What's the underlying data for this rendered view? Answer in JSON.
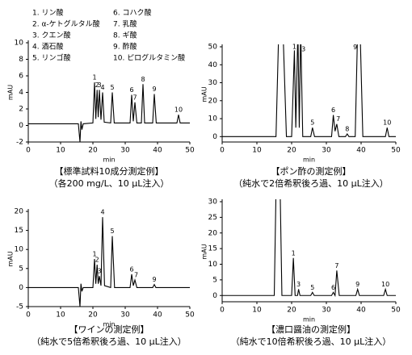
{
  "chart_data": [
    {
      "type": "line",
      "xlabel": "min",
      "ylabel": "mAU",
      "caption": [
        "【標準試料10成分測定例】",
        "（各200 mg/L、10 μL注入）"
      ],
      "xlim": [
        0,
        50
      ],
      "xticks": [
        0,
        10,
        20,
        30,
        40,
        50
      ],
      "ylim": [
        -2,
        10
      ],
      "yticks": [
        -2,
        0,
        2,
        4,
        6,
        8,
        10
      ],
      "legend": [
        "1. リン酸",
        "2. α-ケトグルタル酸",
        "3. クエン酸",
        "4. 酒石酸",
        "5. リンゴ酸",
        "6. コハク酸",
        "7. 乳酸",
        "8. ギ酸",
        "9. 酢酸",
        "10. ピログルタミン酸"
      ],
      "x": [
        0,
        15.5,
        16,
        16.3,
        16.6,
        17,
        20,
        20.5,
        20.9,
        21.3,
        21.65,
        22,
        22.5,
        23,
        23.5,
        25.5,
        26,
        26.6,
        31.5,
        32,
        32.5,
        33,
        33.6,
        35,
        35.5,
        36,
        38.5,
        39,
        39.6,
        46,
        46.5,
        47,
        50
      ],
      "values": [
        0.2,
        0.2,
        -2,
        0.5,
        -0.5,
        0.2,
        0.3,
        5.2,
        0.8,
        4.3,
        1,
        4.3,
        0.7,
        4,
        0.4,
        0.3,
        4,
        0.3,
        0.3,
        3.7,
        0.5,
        2.8,
        0.3,
        0.3,
        5,
        0.3,
        0.3,
        3.8,
        0.3,
        0.3,
        1.3,
        0.3,
        0.3
      ],
      "peak_labels": [
        {
          "label": "1",
          "x": 20.5,
          "y": 5.2
        },
        {
          "label": "2",
          "x": 21.3,
          "y": 4.3
        },
        {
          "label": "3",
          "x": 22,
          "y": 4.3
        },
        {
          "label": "4",
          "x": 23,
          "y": 4
        },
        {
          "label": "5",
          "x": 26,
          "y": 4
        },
        {
          "label": "6",
          "x": 32,
          "y": 3.7
        },
        {
          "label": "7",
          "x": 33,
          "y": 2.8
        },
        {
          "label": "8",
          "x": 35.5,
          "y": 5
        },
        {
          "label": "9",
          "x": 39,
          "y": 3.8
        },
        {
          "label": "10",
          "x": 46.5,
          "y": 1.3
        }
      ]
    },
    {
      "type": "line",
      "xlabel": "min",
      "ylabel": "mAU",
      "caption": [
        "【ポン酢の測定例】",
        "（純水で2倍希釈後ろ過、10 μL注入）"
      ],
      "xlim": [
        0,
        50
      ],
      "xticks": [
        0,
        10,
        20,
        30,
        40,
        50
      ],
      "ylim": [
        -3,
        50
      ],
      "yticks": [
        0,
        10,
        20,
        30,
        40,
        50
      ],
      "x": [
        0,
        15.5,
        16.3,
        17.5,
        18.5,
        20,
        20.8,
        21.2,
        21.8,
        22.2,
        22.6,
        23.2,
        25.5,
        26,
        26.6,
        31.5,
        32,
        32.5,
        33,
        33.6,
        35.5,
        36,
        36.5,
        38.3,
        39,
        39.7,
        40.5,
        47,
        47.5,
        48,
        50
      ],
      "values": [
        0,
        0,
        60,
        60,
        0,
        0,
        48,
        5,
        60,
        5,
        60,
        0,
        0,
        5,
        0,
        0,
        12,
        3,
        7,
        0,
        0,
        1.5,
        0,
        0,
        60,
        60,
        0,
        0,
        5,
        0,
        0
      ],
      "peak_labels": [
        {
          "label": "1",
          "x": 20.8,
          "y": 48
        },
        {
          "label": "3",
          "x": 23.4,
          "y": 46
        },
        {
          "label": "5",
          "x": 26,
          "y": 5
        },
        {
          "label": "6",
          "x": 32,
          "y": 12
        },
        {
          "label": "7",
          "x": 33.4,
          "y": 7
        },
        {
          "label": "8",
          "x": 36,
          "y": 1.5
        },
        {
          "label": "9",
          "x": 38.3,
          "y": 47
        },
        {
          "label": "10",
          "x": 47.5,
          "y": 5
        }
      ]
    },
    {
      "type": "line",
      "xlabel": "min",
      "ylabel": "mAU",
      "caption": [
        "【ワインの測定例】",
        "（純水で5倍希釈後ろ過、10 μL注入）"
      ],
      "xlim": [
        0,
        50
      ],
      "xticks": [
        0,
        10,
        20,
        30,
        40,
        50
      ],
      "ylim": [
        -5,
        20
      ],
      "yticks": [
        -5,
        0,
        5,
        10,
        15,
        20
      ],
      "x": [
        0,
        15.5,
        16,
        16.3,
        16.6,
        17,
        20,
        20.5,
        20.9,
        21.3,
        21.65,
        22,
        22.5,
        23,
        23.6,
        25.5,
        26,
        26.7,
        31.5,
        32,
        32.5,
        33,
        33.6,
        38.5,
        39,
        39.5,
        50
      ],
      "values": [
        0,
        0,
        -5,
        1,
        -1,
        0,
        0,
        7.5,
        1,
        6,
        1,
        3,
        0.5,
        18.5,
        0.5,
        0,
        13.5,
        0,
        0,
        3.5,
        0.5,
        2,
        0,
        0,
        0.8,
        0,
        0
      ],
      "peak_labels": [
        {
          "label": "1",
          "x": 20.5,
          "y": 7.5
        },
        {
          "label": "2",
          "x": 21.3,
          "y": 6
        },
        {
          "label": "3",
          "x": 22,
          "y": 3
        },
        {
          "label": "4",
          "x": 23,
          "y": 18.5
        },
        {
          "label": "5",
          "x": 26,
          "y": 13.5
        },
        {
          "label": "6",
          "x": 32,
          "y": 3.5
        },
        {
          "label": "7",
          "x": 33.4,
          "y": 2
        },
        {
          "label": "9",
          "x": 39,
          "y": 0.8
        }
      ]
    },
    {
      "type": "line",
      "xlabel": "min",
      "ylabel": "mAU",
      "caption": [
        "【濃口醤油の測定例】",
        "（純水で10倍希釈後ろ過、10 μL注入）"
      ],
      "xlim": [
        0,
        50
      ],
      "xticks": [
        0,
        10,
        20,
        30,
        40,
        50
      ],
      "ylim": [
        -2,
        30
      ],
      "yticks": [
        0,
        5,
        10,
        15,
        20,
        25,
        30
      ],
      "x": [
        0,
        15,
        15.6,
        16.6,
        17.2,
        20,
        20.5,
        21,
        21.7,
        22,
        22.4,
        25.5,
        26,
        26.5,
        31.5,
        32,
        32.5,
        33,
        33.7,
        38.5,
        39,
        39.5,
        46.5,
        47,
        47.5,
        50
      ],
      "values": [
        0,
        0,
        40,
        40,
        0,
        0,
        12,
        0,
        0,
        2,
        0,
        0,
        1,
        0,
        0,
        1,
        0,
        8,
        0,
        0,
        2,
        0,
        0,
        2,
        0,
        0
      ],
      "peak_labels": [
        {
          "label": "1",
          "x": 20.5,
          "y": 12
        },
        {
          "label": "3",
          "x": 22,
          "y": 2
        },
        {
          "label": "5",
          "x": 26,
          "y": 1
        },
        {
          "label": "6",
          "x": 32,
          "y": 1
        },
        {
          "label": "7",
          "x": 33,
          "y": 8
        },
        {
          "label": "9",
          "x": 39,
          "y": 2
        },
        {
          "label": "10",
          "x": 47,
          "y": 2
        }
      ]
    }
  ]
}
